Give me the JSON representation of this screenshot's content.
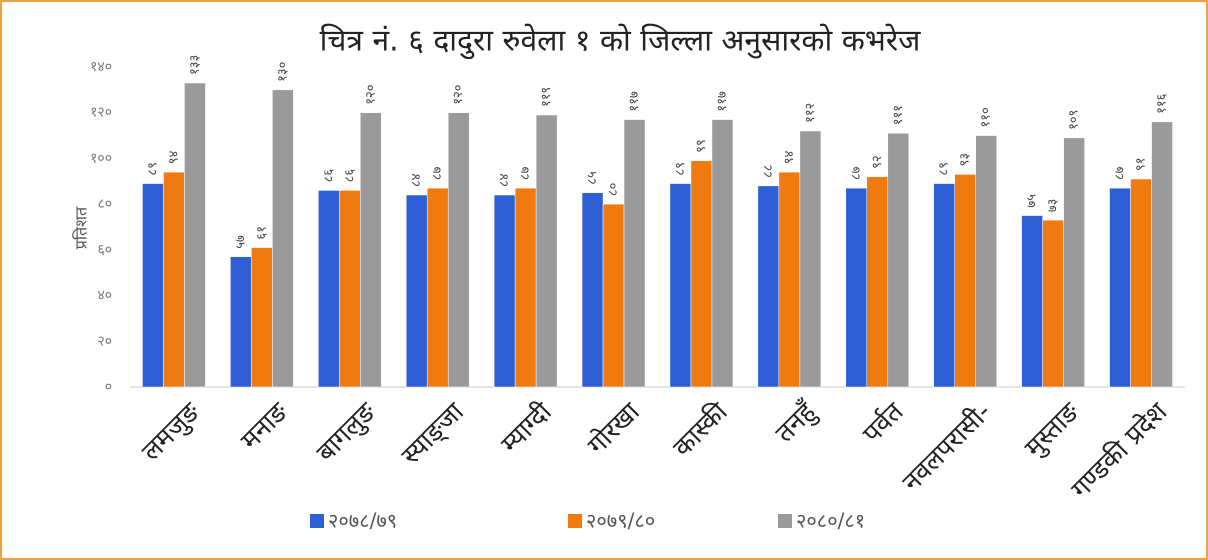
{
  "chart_data": {
    "type": "bar",
    "title": "चित्र नं. ६ दादुरा रुवेला १ को जिल्ला अनुसारको कभरेज",
    "y_label": "प्रतिशत",
    "categories": [
      "लमजुङ",
      "मनाङ",
      "बागलुङ",
      "स्याङ्जा",
      "म्याग्दी",
      "गोरखा",
      "कास्की",
      "तनहुँ",
      "पर्वत",
      "नवलपरासी-",
      "मुस्ताङ",
      "गण्डकी प्रदेश"
    ],
    "series": [
      {
        "name": "२०७८/७९",
        "color": "#2e5fd6",
        "values": [
          89,
          57,
          86,
          84,
          84,
          85,
          89,
          88,
          87,
          89,
          75,
          87
        ],
        "value_labels": [
          "८९",
          "५७",
          "८६",
          "८४",
          "८४",
          "८५",
          "८९",
          "८८",
          "८७",
          "८९",
          "७५",
          "८७"
        ]
      },
      {
        "name": "२०७९/८०",
        "color": "#f07a10",
        "values": [
          94,
          61,
          86,
          87,
          87,
          80,
          99,
          94,
          92,
          93,
          73,
          91
        ],
        "value_labels": [
          "९४",
          "६१",
          "८६",
          "८७",
          "८७",
          "८०",
          "९९",
          "९४",
          "९२",
          "९३",
          "७३",
          "९१"
        ]
      },
      {
        "name": "२०८०/८१",
        "color": "#9a9a9a",
        "values": [
          133,
          130,
          120,
          120,
          119,
          117,
          117,
          112,
          111,
          110,
          109,
          116
        ],
        "value_labels": [
          "१३३",
          "१३०",
          "१२०",
          "१२०",
          "११९",
          "११७",
          "११७",
          "११२",
          "१११",
          "११०",
          "१०९",
          "११६"
        ]
      }
    ],
    "ylim": [
      0,
      140
    ],
    "yticks": [
      {
        "value": 0,
        "label": "०"
      },
      {
        "value": 20,
        "label": "२०"
      },
      {
        "value": 40,
        "label": "४०"
      },
      {
        "value": 60,
        "label": "६०"
      },
      {
        "value": 80,
        "label": "८०"
      },
      {
        "value": 100,
        "label": "१००"
      },
      {
        "value": 120,
        "label": "१२०"
      },
      {
        "value": 140,
        "label": "१४०"
      }
    ],
    "legend": "bottom"
  }
}
